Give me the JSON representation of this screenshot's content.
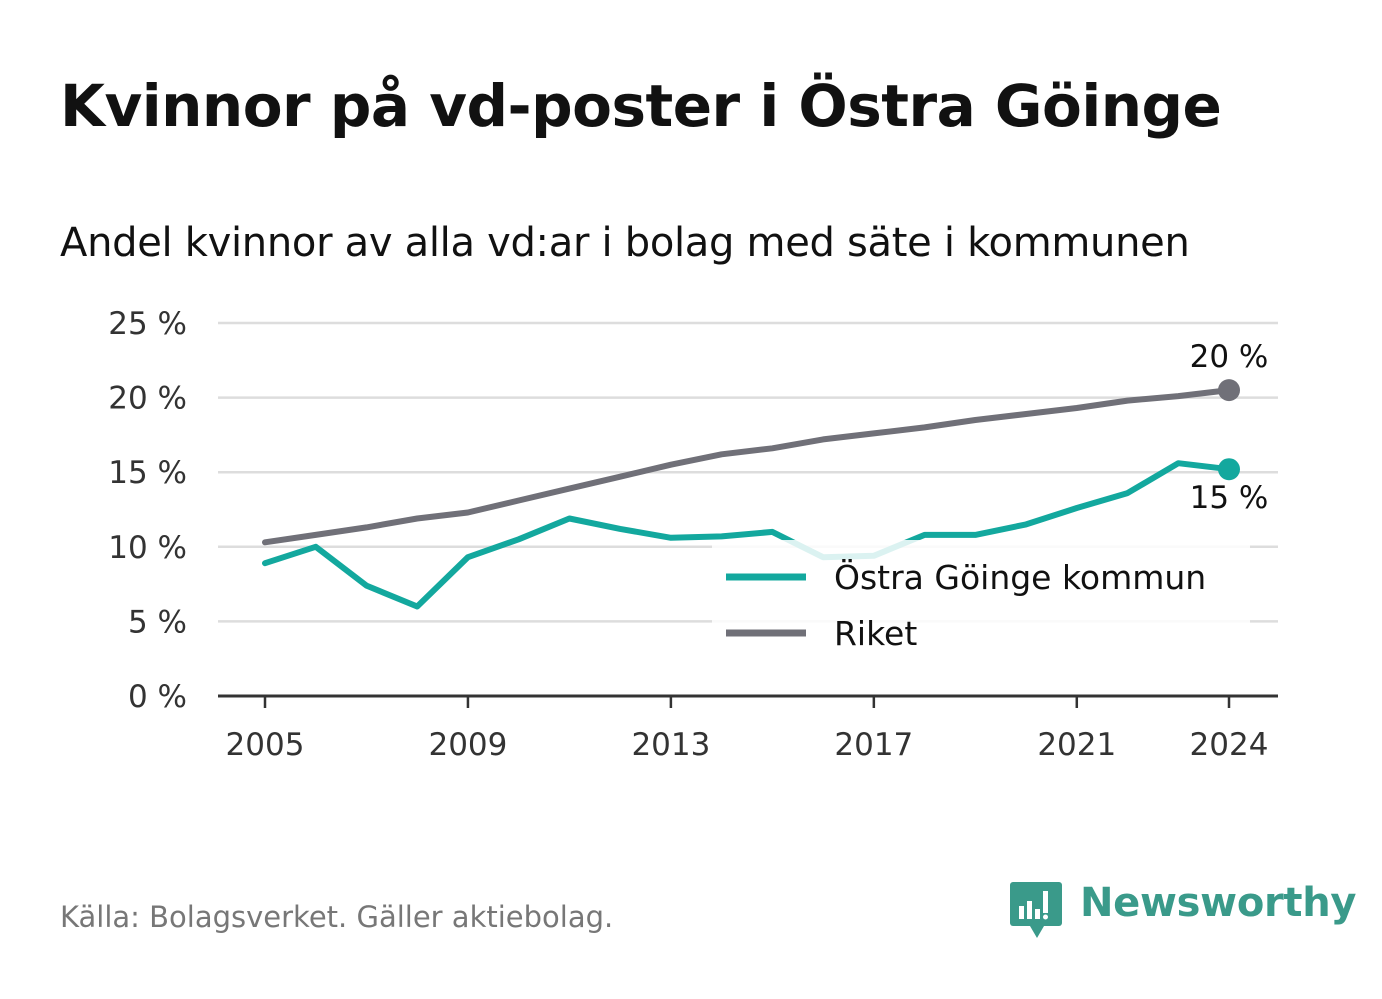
{
  "header": {
    "title": "Kvinnor på vd-poster i Östra Göinge",
    "subtitle": "Andel kvinnor av alla vd:ar i bolag med säte i kommunen"
  },
  "footer": {
    "source": "Källa: Bolagsverket. Gäller aktiebolag.",
    "brand": "Newsworthy",
    "brand_icon": "bar-chart-speech-bubble-icon"
  },
  "colors": {
    "kommun": "#13a89e",
    "riket": "#707078",
    "grid": "#dddddd",
    "axis": "#333333",
    "brand": "#3a9a8a"
  },
  "chart_data": {
    "type": "line",
    "title": "Kvinnor på vd-poster i Östra Göinge",
    "subtitle": "Andel kvinnor av alla vd:ar i bolag med säte i kommunen",
    "x_ticks": [
      2005,
      2009,
      2013,
      2017,
      2021,
      2024
    ],
    "y_ticks": [
      0,
      5,
      10,
      15,
      20,
      25
    ],
    "y_tick_labels": [
      "0 %",
      "5 %",
      "10 %",
      "15 %",
      "20 %",
      "25 %"
    ],
    "xlim": [
      2005,
      2024
    ],
    "ylim": [
      0,
      25
    ],
    "grid": "horizontal",
    "legend": "inside-right",
    "series": [
      {
        "name": "Östra Göinge kommun",
        "key": "kommun",
        "x": [
          2005,
          2006,
          2007,
          2008,
          2009,
          2010,
          2011,
          2012,
          2013,
          2014,
          2015,
          2016,
          2017,
          2018,
          2019,
          2020,
          2021,
          2022,
          2023,
          2024
        ],
        "values": [
          8.9,
          10.0,
          7.4,
          6.0,
          9.3,
          10.5,
          11.9,
          11.2,
          10.6,
          10.7,
          11.0,
          9.3,
          9.4,
          10.8,
          10.8,
          11.5,
          12.6,
          13.6,
          15.6,
          15.2
        ],
        "end_label": "15 %"
      },
      {
        "name": "Riket",
        "key": "riket",
        "x": [
          2005,
          2006,
          2007,
          2008,
          2009,
          2010,
          2011,
          2012,
          2013,
          2014,
          2015,
          2016,
          2017,
          2018,
          2019,
          2020,
          2021,
          2022,
          2023,
          2024
        ],
        "values": [
          10.3,
          10.8,
          11.3,
          11.9,
          12.3,
          13.1,
          13.9,
          14.7,
          15.5,
          16.2,
          16.6,
          17.2,
          17.6,
          18.0,
          18.5,
          18.9,
          19.3,
          19.8,
          20.1,
          20.5
        ],
        "end_label": "20 %"
      }
    ]
  }
}
